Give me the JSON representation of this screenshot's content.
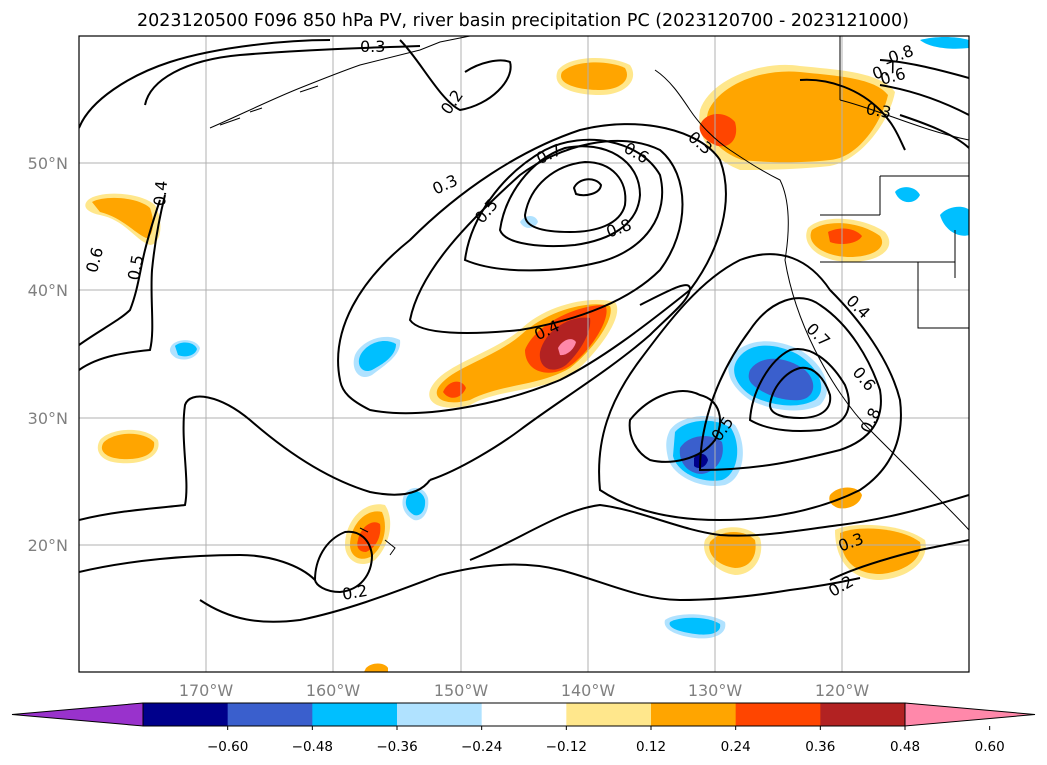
{
  "title": "2023120500 F096 850 hPa PV, river basin precipitation PC (2023120700 - 2023121000)",
  "lon_ticks": [
    "170°W",
    "160°W",
    "150°W",
    "140°W",
    "130°W",
    "120°W"
  ],
  "lat_ticks": [
    "50°N",
    "40°N",
    "30°N",
    "20°N"
  ],
  "colorbar": {
    "extend": "both",
    "levels": [
      "−0.60",
      "−0.48",
      "−0.36",
      "−0.24",
      "−0.12",
      "0.12",
      "0.24",
      "0.36",
      "0.48",
      "0.60"
    ],
    "colors": [
      "#9932cc",
      "#00008b",
      "#3a5fcd",
      "#00bfff",
      "#b0e2ff",
      "#ffffff",
      "#ffe78c",
      "#ffa500",
      "#ff4500",
      "#b22222",
      "#ff88aa"
    ]
  },
  "contour_labels": {
    "a": "0.3",
    "b": "0.2",
    "c": "0.3",
    "d": "0.5",
    "e": "0.7",
    "f": "0.6",
    "g": "0.8",
    "h": "0.4",
    "i": "0.6",
    "j": "0.5",
    "k": "0.4",
    "l": "0.2",
    "m": "0.5",
    "n": "0.4",
    "o": "0.7",
    "p": "0.6",
    "q": "0.8",
    "r": "0.3",
    "s": "0.2",
    "t": "0.3",
    "u": "0.8",
    "v": "0.7",
    "w": "0.6",
    "x": "0.3"
  }
}
